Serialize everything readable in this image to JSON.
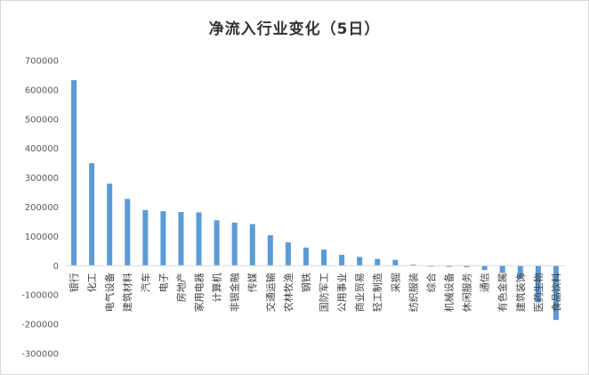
{
  "chart_data": {
    "type": "bar",
    "title": "净流入行业变化（5日）",
    "xlabel": "",
    "ylabel": "",
    "ylim": [
      -300000,
      700000
    ],
    "yticks": [
      700000,
      600000,
      500000,
      400000,
      300000,
      200000,
      100000,
      0,
      -100000,
      -200000,
      -300000
    ],
    "ytick_labels": [
      "700000",
      "600000",
      "500000",
      "400000",
      "300000",
      "200000",
      "100000",
      "0",
      "-100000",
      "-200000",
      "-300000"
    ],
    "grid": false,
    "legend": "none",
    "bar_color": "#5b9bd5",
    "categories": [
      "银行",
      "化工",
      "电气设备",
      "建筑材料",
      "汽车",
      "电子",
      "房地产",
      "家用电器",
      "计算机",
      "非银金融",
      "传媒",
      "交通运输",
      "农林牧渔",
      "钢铁",
      "国防军工",
      "公用事业",
      "商业贸易",
      "轻工制造",
      "采掘",
      "纺织服装",
      "综合",
      "机械设备",
      "休闲服务",
      "通信",
      "有色金属",
      "建筑装饰",
      "医药生物",
      "食品饮料"
    ],
    "values": [
      633000,
      350000,
      280000,
      228000,
      190000,
      186000,
      183000,
      182000,
      155000,
      147000,
      142000,
      104000,
      80000,
      62000,
      55000,
      37000,
      30000,
      23000,
      20000,
      4000,
      -3000,
      -4000,
      -5000,
      -15000,
      -25000,
      -45000,
      -125000,
      -185000
    ]
  }
}
